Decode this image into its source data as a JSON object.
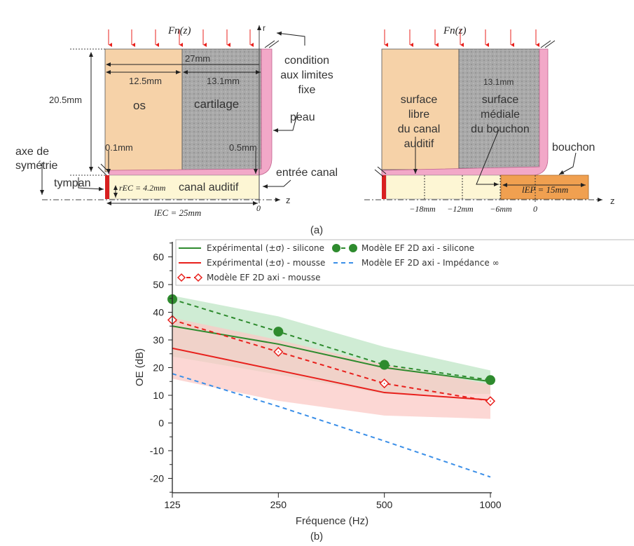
{
  "panel_a": {
    "caption": "(a)",
    "left": {
      "force": "Fn(z)",
      "r_axis": "r",
      "z_axis": "z",
      "dim_total": "27mm",
      "dim_os": "12.5mm",
      "dim_cartilage": "13.1mm",
      "dim_height": "20.5mm",
      "dim_skin_left": "0.1mm",
      "dim_skin_right": "0.5mm",
      "os": "os",
      "cartilage": "cartilage",
      "boundary_condition": [
        "condition",
        "aux limites",
        "fixe"
      ],
      "skin": "peau",
      "symmetry_axis": [
        "axe de",
        "symétrie"
      ],
      "eardrum": "tympan",
      "canal_entrance": "entrée canal",
      "canal": "canal auditif",
      "radius": "rEC = 4.2mm",
      "length": "lEC = 25mm",
      "zero": "0"
    },
    "right": {
      "force": "Fn(z)",
      "z_axis": "z",
      "dim_cartilage": "13.1mm",
      "free_surface": [
        "surface",
        "libre",
        "du canal",
        "auditif"
      ],
      "medial_surface": [
        "surface",
        "médiale",
        "du bouchon"
      ],
      "plug": "bouchon",
      "plug_length": "lEP = 15mm",
      "ticks": [
        "−18mm",
        "−12mm",
        "−6mm",
        "0"
      ]
    }
  },
  "panel_b": {
    "caption": "(b)"
  },
  "colors": {
    "green": "#2e8b2e",
    "red": "#e8201c",
    "blue": "#3b8fe8",
    "green_band": "#bfe5c6",
    "red_band": "#fbc9c6",
    "overlap": "#cbb0a0"
  },
  "chart_data": {
    "type": "line",
    "title": "",
    "xlabel": "Fréquence (Hz)",
    "ylabel": "OE (dB)",
    "x": [
      125,
      250,
      500,
      1000
    ],
    "xscale": "log2",
    "xticks": [
      "125",
      "250",
      "500",
      "1000"
    ],
    "yticks": [
      "60",
      "50",
      "40",
      "30",
      "20",
      "10",
      "0",
      "-10",
      "-20"
    ],
    "ylim": [
      -25,
      65
    ],
    "legend_position": "top",
    "series": [
      {
        "name": "Expérimental (±σ) - silicone",
        "style": "solid",
        "color": "#2e8b2e",
        "values": [
          35,
          28.5,
          20,
          15
        ],
        "band_upper": [
          46,
          38.5,
          27.5,
          19
        ],
        "band_lower": [
          24,
          17.5,
          10.5,
          10.5
        ]
      },
      {
        "name": "Expérimental (±σ) - mousse",
        "style": "solid",
        "color": "#e8201c",
        "values": [
          27,
          19,
          11,
          8.3
        ],
        "band_upper": [
          38,
          30,
          21,
          14
        ],
        "band_lower": [
          16,
          8,
          2.7,
          1.5
        ]
      },
      {
        "name": "Modèle EF 2D axi - mousse",
        "style": "dashed-diamond",
        "color": "#e8201c",
        "values": [
          37.2,
          25.7,
          14.3,
          7.9
        ]
      },
      {
        "name": "Modèle EF 2D axi - silicone",
        "style": "dashed-circle",
        "color": "#2e8b2e",
        "values": [
          44.7,
          33,
          21,
          15.5
        ]
      },
      {
        "name": "Modèle EF 2D axi - Impédance ∞",
        "style": "dashed",
        "color": "#3b8fe8",
        "values": [
          17.8,
          6,
          -6.5,
          -19.5
        ]
      }
    ]
  }
}
